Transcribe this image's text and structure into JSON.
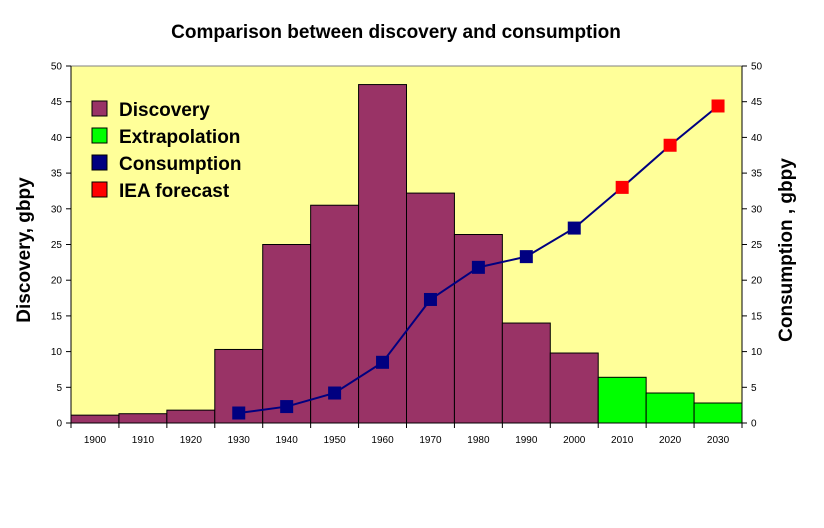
{
  "chart_data": {
    "type": "bar",
    "title": "Comparison between discovery and consumption",
    "ylabel_left": "Discovery, gbpy",
    "ylabel_right": "Consumption , gbpy",
    "xlabel": "",
    "ylim": [
      0,
      50
    ],
    "yticks": [
      "0",
      "5",
      "10",
      "15",
      "20",
      "25",
      "30",
      "35",
      "40",
      "45",
      "50"
    ],
    "categories": [
      "1900",
      "1910",
      "1920",
      "1930",
      "1940",
      "1950",
      "1960",
      "1970",
      "1980",
      "1990",
      "2000",
      "2010",
      "2020",
      "2030"
    ],
    "background": "#ffff99",
    "legend_position": "top-left",
    "series": [
      {
        "name": "Discovery",
        "kind": "bar",
        "color": "#993366",
        "values": [
          1.1,
          1.3,
          1.8,
          10.3,
          25.0,
          30.5,
          47.4,
          32.2,
          26.4,
          14.0,
          9.8,
          null,
          null,
          null
        ]
      },
      {
        "name": "Extrapolation",
        "kind": "bar",
        "color": "#00ff00",
        "values": [
          null,
          null,
          null,
          null,
          null,
          null,
          null,
          null,
          null,
          null,
          null,
          6.4,
          4.2,
          2.8
        ]
      },
      {
        "name": "Consumption",
        "kind": "line",
        "color": "#000080",
        "values": [
          null,
          null,
          null,
          1.4,
          2.3,
          4.2,
          8.5,
          17.3,
          21.8,
          23.3,
          27.3,
          null,
          null,
          null
        ]
      },
      {
        "name": "IEA forecast",
        "kind": "line",
        "color": "#ff0000",
        "values": [
          null,
          null,
          null,
          null,
          null,
          null,
          null,
          null,
          null,
          null,
          null,
          33.0,
          38.9,
          44.4
        ]
      }
    ]
  }
}
